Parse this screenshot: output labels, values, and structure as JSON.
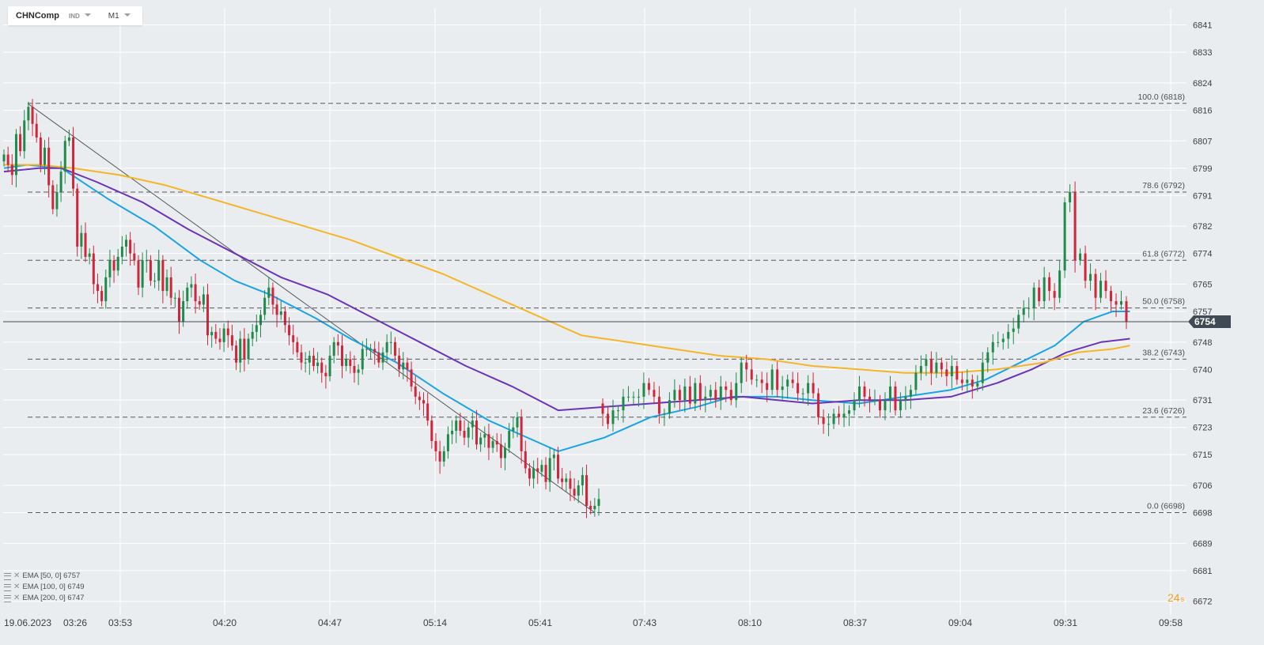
{
  "symbol": {
    "name": "CHNComp",
    "type": "IND",
    "timeframe": "M1"
  },
  "countdown": {
    "value": "24",
    "unit": "s"
  },
  "colors": {
    "background": "#eaedf0",
    "grid": "#ffffff",
    "up": "#1f8a4c",
    "down": "#d0253a",
    "ema50": "#1aa3e6",
    "ema100": "#6b34b8",
    "ema200": "#f5b526",
    "price_tag": "#3f4a55"
  },
  "legend": [
    {
      "label": "EMA  [50,  0] 6757"
    },
    {
      "label": "EMA  [100,  0] 6749"
    },
    {
      "label": "EMA  [200,  0] 6747"
    }
  ],
  "chart_data": {
    "type": "candlestick",
    "title": "",
    "xlabel": "",
    "ylabel": "",
    "ylim": [
      6668,
      6846
    ],
    "y_ticks": [
      6672,
      6681,
      6689,
      6698,
      6706,
      6715,
      6723,
      6731,
      6740,
      6748,
      6757,
      6765,
      6774,
      6782,
      6791,
      6799,
      6807,
      6816,
      6824,
      6833,
      6841
    ],
    "x_ticks": [
      "19.06.2023",
      "03:26",
      "03:53",
      "04:20",
      "04:47",
      "05:14",
      "05:41",
      "07:43",
      "08:10",
      "08:37",
      "09:04",
      "09:31",
      "09:58"
    ],
    "grid": true,
    "current_price": 6754,
    "fibonacci": {
      "high": 6818,
      "low": 6698,
      "levels": [
        {
          "label": "100.0 (6818)",
          "value": 6818
        },
        {
          "label": "78.6 (6792)",
          "value": 6792
        },
        {
          "label": "61.8 (6772)",
          "value": 6772
        },
        {
          "label": "50.0 (6758)",
          "value": 6758
        },
        {
          "label": "38.2 (6743)",
          "value": 6743
        },
        {
          "label": "23.6 (6726)",
          "value": 6726
        },
        {
          "label": "0.0 (6698)",
          "value": 6698
        }
      ]
    },
    "trendline": {
      "from": {
        "time": "03:33",
        "price": 6818
      },
      "to": {
        "time": "06:06",
        "price": 6698
      }
    },
    "series": [
      {
        "name": "EMA [50, 0]",
        "color": "#1aa3e6",
        "last": 6757,
        "points": [
          [
            0,
            6799
          ],
          [
            0.02,
            6800
          ],
          [
            0.05,
            6799
          ],
          [
            0.09,
            6790
          ],
          [
            0.13,
            6782
          ],
          [
            0.17,
            6772
          ],
          [
            0.2,
            6766
          ],
          [
            0.23,
            6762
          ],
          [
            0.27,
            6755
          ],
          [
            0.3,
            6749
          ],
          [
            0.34,
            6742
          ],
          [
            0.38,
            6733
          ],
          [
            0.42,
            6725
          ],
          [
            0.46,
            6719
          ],
          [
            0.48,
            6716
          ],
          [
            0.52,
            6720
          ],
          [
            0.56,
            6726
          ],
          [
            0.6,
            6729
          ],
          [
            0.63,
            6732
          ],
          [
            0.67,
            6732
          ],
          [
            0.7,
            6731
          ],
          [
            0.74,
            6730
          ],
          [
            0.78,
            6732
          ],
          [
            0.82,
            6734
          ],
          [
            0.85,
            6737
          ],
          [
            0.88,
            6742
          ],
          [
            0.91,
            6747
          ],
          [
            0.935,
            6754
          ],
          [
            0.96,
            6757
          ],
          [
            0.975,
            6757
          ]
        ]
      },
      {
        "name": "EMA [100, 0]",
        "color": "#6b34b8",
        "last": 6749,
        "points": [
          [
            0,
            6798
          ],
          [
            0.03,
            6799
          ],
          [
            0.05,
            6799
          ],
          [
            0.08,
            6795
          ],
          [
            0.12,
            6789
          ],
          [
            0.16,
            6781
          ],
          [
            0.2,
            6774
          ],
          [
            0.24,
            6767
          ],
          [
            0.28,
            6762
          ],
          [
            0.32,
            6755
          ],
          [
            0.36,
            6748
          ],
          [
            0.4,
            6741
          ],
          [
            0.44,
            6735
          ],
          [
            0.48,
            6728
          ],
          [
            0.52,
            6729
          ],
          [
            0.56,
            6730
          ],
          [
            0.6,
            6731
          ],
          [
            0.64,
            6732
          ],
          [
            0.67,
            6731
          ],
          [
            0.7,
            6730
          ],
          [
            0.74,
            6731
          ],
          [
            0.78,
            6731
          ],
          [
            0.82,
            6732
          ],
          [
            0.86,
            6736
          ],
          [
            0.89,
            6740
          ],
          [
            0.92,
            6745
          ],
          [
            0.95,
            6748
          ],
          [
            0.975,
            6749
          ]
        ]
      },
      {
        "name": "EMA [200, 0]",
        "color": "#f5b526",
        "last": 6747,
        "points": [
          [
            0,
            6800
          ],
          [
            0.03,
            6800
          ],
          [
            0.06,
            6799
          ],
          [
            0.1,
            6797
          ],
          [
            0.14,
            6794
          ],
          [
            0.18,
            6790
          ],
          [
            0.22,
            6786
          ],
          [
            0.26,
            6782
          ],
          [
            0.3,
            6778
          ],
          [
            0.34,
            6773
          ],
          [
            0.38,
            6768
          ],
          [
            0.42,
            6762
          ],
          [
            0.46,
            6756
          ],
          [
            0.5,
            6750
          ],
          [
            0.54,
            6748
          ],
          [
            0.58,
            6746
          ],
          [
            0.62,
            6744
          ],
          [
            0.66,
            6743
          ],
          [
            0.7,
            6741
          ],
          [
            0.74,
            6740
          ],
          [
            0.78,
            6739
          ],
          [
            0.82,
            6739
          ],
          [
            0.86,
            6740
          ],
          [
            0.9,
            6742
          ],
          [
            0.93,
            6745
          ],
          [
            0.96,
            6746
          ],
          [
            0.975,
            6747
          ]
        ]
      }
    ],
    "candles": {
      "x_range": [
        0,
        0.975
      ],
      "open": [
        6801,
        6803,
        6800,
        6797,
        6809,
        6804,
        6813,
        6817,
        6812,
        6808,
        6800,
        6805,
        6794,
        6787,
        6792,
        6798,
        6807,
        6808,
        6793,
        6776,
        6780,
        6773,
        6774,
        6765,
        6763,
        6760,
        6767,
        6772,
        6769,
        6773,
        6776,
        6778,
        6774,
        6772,
        6764,
        6772,
        6772,
        6766,
        6766,
        6772,
        6763,
        6767,
        6761,
        6761,
        6754,
        6760,
        6764,
        6765,
        6760,
        6759,
        6762,
        6750,
        6751,
        6749,
        6748,
        6752,
        6750,
        6747,
        6742,
        6749,
        6743,
        6749,
        6751,
        6753,
        6756,
        6761,
        6764,
        6759,
        6756,
        6757,
        6753,
        6750,
        6748,
        6745,
        6742,
        6742,
        6744,
        6741,
        6742,
        6739,
        6738,
        6744,
        6748,
        6747,
        6741,
        6743,
        6741,
        6739,
        6740,
        6746,
        6746,
        6746,
        6745,
        6742,
        6745,
        6748,
        6748,
        6744,
        6740,
        6742,
        6740,
        6735,
        6732,
        6731,
        6730,
        6725,
        6719,
        6716,
        6713,
        6716,
        6721,
        6722,
        6725,
        6722,
        6720,
        6723,
        6725,
        6718,
        6720,
        6721,
        6717,
        6719,
        6718,
        6714,
        6717,
        6722,
        6723,
        6726,
        6716,
        6711,
        6708,
        6711,
        6710,
        6712,
        6707,
        6714,
        6715,
        6708,
        6707,
        6708,
        6705,
        6703,
        6706,
        6709,
        6700,
        6699,
        6700,
        6730,
        6727,
        6724,
        6728,
        6728,
        6732,
        6732,
        6732,
        6732,
        6736,
        6734,
        6732,
        6727,
        6727,
        6731,
        6734,
        6731,
        6735,
        6730,
        6736,
        6731,
        6732,
        6734,
        6731,
        6735,
        6734,
        6731,
        6736,
        6742,
        6740,
        6737,
        6737,
        6736,
        6734,
        6740,
        6734,
        6735,
        6737,
        6736,
        6733,
        6733,
        6736,
        6733,
        6726,
        6724,
        6724,
        6727,
        6726,
        6727,
        6728,
        6731,
        6735,
        6732,
        6731,
        6731,
        6728,
        6731,
        6735,
        6728,
        6731,
        6732,
        6734,
        6739,
        6741,
        6743,
        6739,
        6742,
        6740,
        6738,
        6741,
        6737,
        6736,
        6737,
        6735,
        6736,
        6742,
        6745,
        6748,
        6748,
        6749,
        6751,
        6752,
        6756,
        6758,
        6758,
        6764,
        6760,
        6767,
        6763,
        6761,
        6769,
        6789,
        6792,
        6772,
        6774,
        6766,
        6768,
        6761,
        6766,
        6763,
        6760,
        6759,
        6760
      ],
      "close": [
        6803,
        6800,
        6797,
        6809,
        6804,
        6813,
        6817,
        6812,
        6808,
        6800,
        6805,
        6794,
        6787,
        6792,
        6798,
        6807,
        6808,
        6793,
        6776,
        6780,
        6773,
        6774,
        6765,
        6763,
        6760,
        6767,
        6772,
        6769,
        6773,
        6776,
        6778,
        6774,
        6772,
        6764,
        6772,
        6772,
        6766,
        6766,
        6772,
        6763,
        6767,
        6761,
        6761,
        6754,
        6760,
        6764,
        6765,
        6760,
        6759,
        6762,
        6750,
        6751,
        6749,
        6748,
        6752,
        6750,
        6747,
        6742,
        6749,
        6743,
        6749,
        6751,
        6753,
        6756,
        6761,
        6764,
        6759,
        6756,
        6757,
        6753,
        6750,
        6748,
        6745,
        6742,
        6742,
        6744,
        6741,
        6742,
        6739,
        6738,
        6744,
        6748,
        6747,
        6741,
        6743,
        6741,
        6739,
        6740,
        6746,
        6746,
        6746,
        6745,
        6742,
        6745,
        6748,
        6748,
        6744,
        6740,
        6742,
        6740,
        6735,
        6732,
        6731,
        6730,
        6725,
        6719,
        6716,
        6713,
        6716,
        6721,
        6722,
        6725,
        6722,
        6720,
        6723,
        6725,
        6718,
        6720,
        6721,
        6717,
        6719,
        6718,
        6714,
        6717,
        6722,
        6723,
        6726,
        6716,
        6711,
        6708,
        6711,
        6710,
        6712,
        6707,
        6714,
        6715,
        6708,
        6707,
        6708,
        6705,
        6703,
        6706,
        6709,
        6700,
        6699,
        6700,
        6702,
        6727,
        6724,
        6728,
        6728,
        6732,
        6732,
        6732,
        6732,
        6736,
        6734,
        6732,
        6727,
        6727,
        6731,
        6734,
        6731,
        6735,
        6730,
        6736,
        6731,
        6732,
        6734,
        6731,
        6735,
        6734,
        6731,
        6736,
        6742,
        6740,
        6737,
        6737,
        6736,
        6734,
        6740,
        6734,
        6735,
        6737,
        6736,
        6733,
        6733,
        6736,
        6733,
        6726,
        6724,
        6724,
        6727,
        6726,
        6727,
        6728,
        6731,
        6735,
        6732,
        6731,
        6731,
        6728,
        6731,
        6735,
        6728,
        6731,
        6732,
        6734,
        6739,
        6741,
        6743,
        6739,
        6742,
        6740,
        6738,
        6741,
        6737,
        6736,
        6737,
        6735,
        6736,
        6742,
        6745,
        6748,
        6748,
        6749,
        6751,
        6752,
        6756,
        6758,
        6758,
        6764,
        6760,
        6767,
        6763,
        6761,
        6769,
        6789,
        6792,
        6772,
        6774,
        6766,
        6768,
        6761,
        6766,
        6763,
        6760,
        6759,
        6760,
        6754
      ]
    }
  }
}
